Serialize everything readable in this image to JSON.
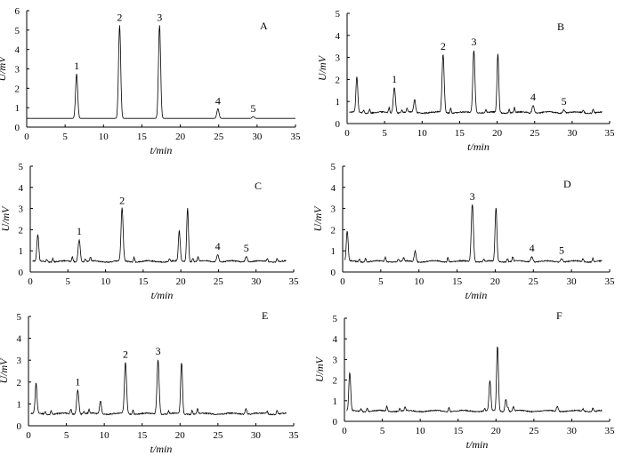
{
  "chart_data": [
    {
      "type": "line",
      "panel": "A",
      "xlabel": "t/min",
      "ylabel": "U/mV",
      "xlim": [
        0,
        35
      ],
      "ylim": [
        0,
        6
      ],
      "xticks": [
        0,
        5,
        10,
        15,
        20,
        25,
        30,
        35
      ],
      "yticks": [
        0,
        1,
        2,
        3,
        4,
        5,
        6
      ],
      "baseline": 0.45,
      "peaks": [
        {
          "x": 6.5,
          "y": 2.75,
          "label": "1"
        },
        {
          "x": 12.1,
          "y": 5.25,
          "label": "2"
        },
        {
          "x": 17.3,
          "y": 5.25,
          "label": "3"
        },
        {
          "x": 24.9,
          "y": 0.95,
          "label": "4"
        },
        {
          "x": 29.5,
          "y": 0.55,
          "label": "5"
        }
      ]
    },
    {
      "type": "line",
      "panel": "B",
      "xlabel": "t/min",
      "ylabel": "U/mV",
      "xlim": [
        0,
        35
      ],
      "ylim": [
        0,
        5
      ],
      "xticks": [
        0,
        5,
        10,
        15,
        20,
        25,
        30,
        35
      ],
      "yticks": [
        0,
        1,
        2,
        3,
        4,
        5
      ],
      "baseline": 0.5,
      "peaks": [
        {
          "x": 1.3,
          "y": 2.1
        },
        {
          "x": 6.3,
          "y": 1.65,
          "label": "1"
        },
        {
          "x": 9.0,
          "y": 1.1
        },
        {
          "x": 12.8,
          "y": 3.15,
          "label": "2"
        },
        {
          "x": 16.9,
          "y": 3.35,
          "label": "3"
        },
        {
          "x": 20.1,
          "y": 3.15
        },
        {
          "x": 24.8,
          "y": 0.85,
          "label": "4"
        },
        {
          "x": 28.9,
          "y": 0.65,
          "label": "5"
        }
      ]
    },
    {
      "type": "line",
      "panel": "C",
      "xlabel": "t/min",
      "ylabel": "U/mV",
      "xlim": [
        0,
        35
      ],
      "ylim": [
        0,
        5
      ],
      "xticks": [
        0,
        5,
        10,
        15,
        20,
        25,
        30,
        35
      ],
      "yticks": [
        0,
        1,
        2,
        3,
        4,
        5
      ],
      "baseline": 0.5,
      "peaks": [
        {
          "x": 1.0,
          "y": 1.75
        },
        {
          "x": 6.5,
          "y": 1.55,
          "label": "1"
        },
        {
          "x": 12.2,
          "y": 3.0,
          "label": "2"
        },
        {
          "x": 19.8,
          "y": 1.95
        },
        {
          "x": 20.9,
          "y": 3.05
        },
        {
          "x": 24.9,
          "y": 0.85,
          "label": "4"
        },
        {
          "x": 28.7,
          "y": 0.75,
          "label": "5"
        }
      ]
    },
    {
      "type": "line",
      "panel": "D",
      "xlabel": "t/min",
      "ylabel": "U/mV",
      "xlim": [
        0,
        35
      ],
      "ylim": [
        0,
        5
      ],
      "xticks": [
        0,
        5,
        10,
        15,
        20,
        25,
        30,
        35
      ],
      "yticks": [
        0,
        1,
        2,
        3,
        4,
        5
      ],
      "baseline": 0.5,
      "peaks": [
        {
          "x": 0.6,
          "y": 1.9
        },
        {
          "x": 9.5,
          "y": 1.0
        },
        {
          "x": 17.0,
          "y": 3.2,
          "label": "3"
        },
        {
          "x": 20.1,
          "y": 3.05
        },
        {
          "x": 24.8,
          "y": 0.75,
          "label": "4"
        },
        {
          "x": 28.7,
          "y": 0.65,
          "label": "5"
        }
      ]
    },
    {
      "type": "line",
      "panel": "E",
      "xlabel": "t/min",
      "ylabel": "U/mV",
      "xlim": [
        0,
        35
      ],
      "ylim": [
        0,
        5
      ],
      "xticks": [
        0,
        5,
        10,
        15,
        20,
        25,
        30,
        35
      ],
      "yticks": [
        0,
        1,
        2,
        3,
        4,
        5
      ],
      "baseline": 0.55,
      "peaks": [
        {
          "x": 1.0,
          "y": 1.95
        },
        {
          "x": 6.5,
          "y": 1.65,
          "label": "1"
        },
        {
          "x": 9.5,
          "y": 1.15
        },
        {
          "x": 12.8,
          "y": 2.9,
          "label": "2"
        },
        {
          "x": 17.1,
          "y": 3.05,
          "label": "3"
        },
        {
          "x": 20.2,
          "y": 2.9
        },
        {
          "x": 28.7,
          "y": 0.8
        }
      ]
    },
    {
      "type": "line",
      "panel": "F",
      "xlabel": "t/min",
      "ylabel": "U/mV",
      "xlim": [
        0,
        35
      ],
      "ylim": [
        0,
        5
      ],
      "xticks": [
        0,
        5,
        10,
        15,
        20,
        25,
        30,
        35
      ],
      "yticks": [
        0,
        1,
        2,
        3,
        4,
        5
      ],
      "baseline": 0.5,
      "peaks": [
        {
          "x": 0.7,
          "y": 2.35
        },
        {
          "x": 19.2,
          "y": 1.95
        },
        {
          "x": 20.2,
          "y": 3.65
        },
        {
          "x": 21.3,
          "y": 1.1
        },
        {
          "x": 28.1,
          "y": 0.75
        }
      ]
    }
  ]
}
